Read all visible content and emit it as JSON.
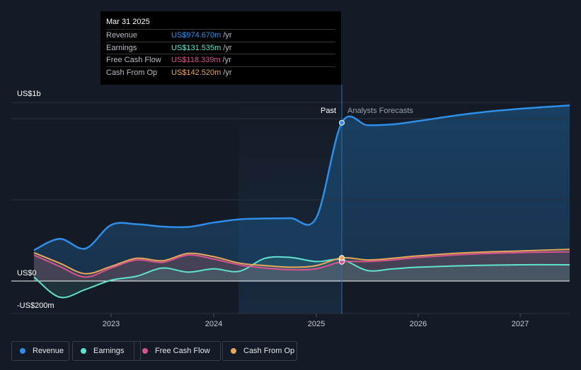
{
  "tooltip": {
    "date": "Mar 31 2025",
    "rows": [
      {
        "label": "Revenue",
        "value": "US$974.670m",
        "unit": "/yr",
        "color": "#2e8fe8"
      },
      {
        "label": "Earnings",
        "value": "US$131.535m",
        "unit": "/yr",
        "color": "#5fe3d0"
      },
      {
        "label": "Free Cash Flow",
        "value": "US$118.339m",
        "unit": "/yr",
        "color": "#d9538f"
      },
      {
        "label": "Cash From Op",
        "value": "US$142.520m",
        "unit": "/yr",
        "color": "#e8a85a"
      }
    ]
  },
  "legend": [
    {
      "label": "Revenue",
      "color": "#2e8fe8"
    },
    {
      "label": "Earnings",
      "color": "#5fe3d0"
    },
    {
      "label": "Free Cash Flow",
      "color": "#d9538f"
    },
    {
      "label": "Cash From Op",
      "color": "#e8a85a"
    }
  ],
  "chart_data": {
    "type": "line",
    "y_axis_labels": [
      "US$1b",
      "US$0",
      "-US$200m"
    ],
    "x_ticks": [
      "2023",
      "2024",
      "2025",
      "2026",
      "2027"
    ],
    "past_label": "Past",
    "forecast_label": "Analysts Forecasts",
    "ylim": [
      -270,
      1120
    ],
    "grid": true,
    "legend_position": "bottom",
    "divider_date": 2025.25,
    "series": [
      {
        "name": "Revenue",
        "color": "#2e8fe8",
        "points": [
          [
            2022.25,
            190
          ],
          [
            2022.5,
            260
          ],
          [
            2022.75,
            200
          ],
          [
            2023.0,
            345
          ],
          [
            2023.25,
            350
          ],
          [
            2023.5,
            335
          ],
          [
            2023.75,
            333
          ],
          [
            2024.0,
            360
          ],
          [
            2024.25,
            380
          ],
          [
            2024.5,
            385
          ],
          [
            2024.75,
            387
          ],
          [
            2025.0,
            390
          ],
          [
            2025.25,
            974.67
          ],
          [
            2025.5,
            960
          ],
          [
            2025.75,
            965
          ],
          [
            2026.0,
            985
          ],
          [
            2026.5,
            1030
          ],
          [
            2027.0,
            1060
          ],
          [
            2027.5,
            1080
          ]
        ]
      },
      {
        "name": "Earnings",
        "color": "#5fe3d0",
        "points": [
          [
            2022.25,
            25
          ],
          [
            2022.5,
            -135
          ],
          [
            2022.75,
            -70
          ],
          [
            2023.0,
            5
          ],
          [
            2023.25,
            30
          ],
          [
            2023.5,
            80
          ],
          [
            2023.75,
            55
          ],
          [
            2024.0,
            75
          ],
          [
            2024.25,
            60
          ],
          [
            2024.5,
            140
          ],
          [
            2024.75,
            145
          ],
          [
            2025.0,
            120
          ],
          [
            2025.25,
            131.535
          ],
          [
            2025.5,
            65
          ],
          [
            2025.75,
            75
          ],
          [
            2026.0,
            85
          ],
          [
            2026.5,
            95
          ],
          [
            2027.0,
            100
          ],
          [
            2027.5,
            100
          ]
        ]
      },
      {
        "name": "Free Cash Flow",
        "color": "#d9538f",
        "points": [
          [
            2022.25,
            160
          ],
          [
            2022.5,
            90
          ],
          [
            2022.75,
            25
          ],
          [
            2023.0,
            80
          ],
          [
            2023.25,
            130
          ],
          [
            2023.5,
            115
          ],
          [
            2023.75,
            160
          ],
          [
            2024.0,
            135
          ],
          [
            2024.25,
            100
          ],
          [
            2024.5,
            80
          ],
          [
            2024.75,
            70
          ],
          [
            2025.0,
            75
          ],
          [
            2025.25,
            118.339
          ],
          [
            2025.5,
            120
          ],
          [
            2025.75,
            130
          ],
          [
            2026.0,
            145
          ],
          [
            2026.5,
            165
          ],
          [
            2027.0,
            175
          ],
          [
            2027.5,
            180
          ]
        ]
      },
      {
        "name": "Cash From Op",
        "color": "#e8a85a",
        "points": [
          [
            2022.25,
            175
          ],
          [
            2022.5,
            110
          ],
          [
            2022.75,
            45
          ],
          [
            2023.0,
            90
          ],
          [
            2023.25,
            140
          ],
          [
            2023.5,
            125
          ],
          [
            2023.75,
            170
          ],
          [
            2024.0,
            150
          ],
          [
            2024.25,
            110
          ],
          [
            2024.5,
            95
          ],
          [
            2024.75,
            85
          ],
          [
            2025.0,
            95
          ],
          [
            2025.25,
            142.52
          ],
          [
            2025.5,
            130
          ],
          [
            2025.75,
            140
          ],
          [
            2026.0,
            155
          ],
          [
            2026.5,
            175
          ],
          [
            2027.0,
            185
          ],
          [
            2027.5,
            195
          ]
        ]
      }
    ]
  }
}
